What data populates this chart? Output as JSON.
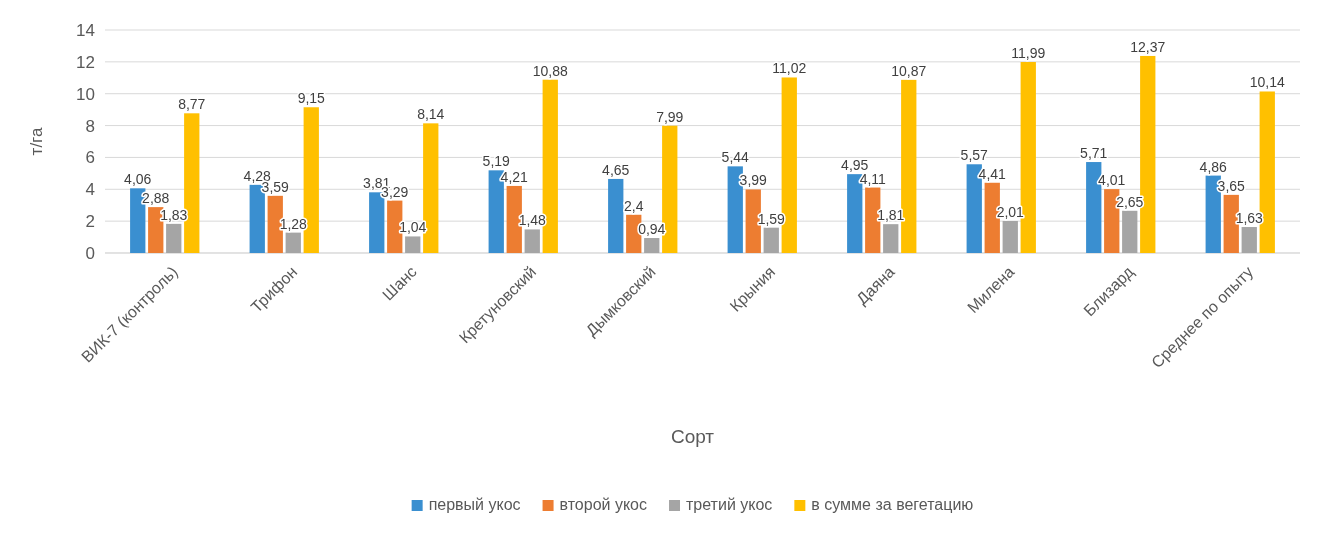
{
  "chart_data": {
    "type": "bar",
    "xlabel": "Сорт",
    "ylabel": "т/га",
    "categories": [
      "ВИК-7 (контроль)",
      "Трифон",
      "Шанс",
      "Кретуновский",
      "Дымковский",
      "Крыния",
      "Даяна",
      "Милена",
      "Близард",
      "Среднее по опыту"
    ],
    "series": [
      {
        "name": "первый укос",
        "color": "#3a8fd0",
        "values": [
          4.06,
          4.28,
          3.81,
          5.19,
          4.65,
          5.44,
          4.95,
          5.57,
          5.71,
          4.86
        ],
        "value_labels": [
          "4,06",
          "4,28",
          "3,81",
          "5,19",
          "4,65",
          "5,44",
          "4,95",
          "5,57",
          "5,71",
          "4,86"
        ]
      },
      {
        "name": "второй укос",
        "color": "#ed7d31",
        "values": [
          2.88,
          3.59,
          3.29,
          4.21,
          2.4,
          3.99,
          4.11,
          4.41,
          4.01,
          3.65
        ],
        "value_labels": [
          "2,88",
          "3,59",
          "3,29",
          "4,21",
          "2,4",
          "3,99",
          "4,11",
          "4,41",
          "4,01",
          "3,65"
        ]
      },
      {
        "name": "третий укос",
        "color": "#a5a5a5",
        "values": [
          1.83,
          1.28,
          1.04,
          1.48,
          0.94,
          1.59,
          1.81,
          2.01,
          2.65,
          1.63
        ],
        "value_labels": [
          "1,83",
          "1,28",
          "1,04",
          "1,48",
          "0,94",
          "1,59",
          "1,81",
          "2,01",
          "2,65",
          "1,63"
        ]
      },
      {
        "name": "в сумме за вегетацию",
        "color": "#ffc000",
        "values": [
          8.77,
          9.15,
          8.14,
          10.88,
          7.99,
          11.02,
          10.87,
          11.99,
          12.37,
          10.14
        ],
        "value_labels": [
          "8,77",
          "9,15",
          "8,14",
          "10,88",
          "7,99",
          "11,02",
          "10,87",
          "11,99",
          "12,37",
          "10,14"
        ]
      }
    ],
    "ylim": [
      0,
      14
    ],
    "yticks": [
      0,
      2,
      4,
      6,
      8,
      10,
      12,
      14
    ],
    "grid": "y",
    "legend": "bottom"
  }
}
